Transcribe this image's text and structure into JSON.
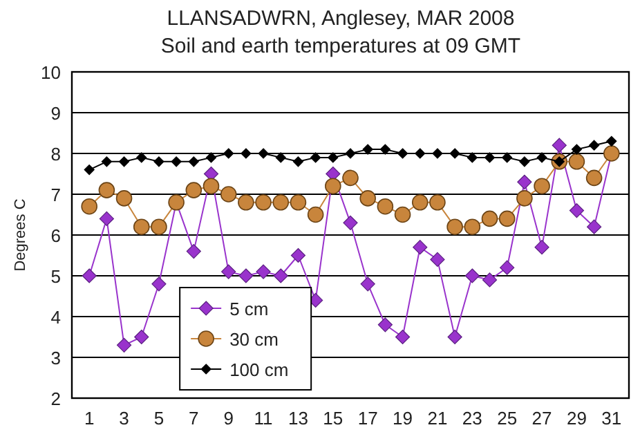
{
  "chart_data": {
    "type": "line",
    "title": "LLANSADWRN, Anglesey, MAR 2008",
    "subtitle": "Soil and earth temperatures at 09 GMT",
    "ylabel": "Degrees C",
    "x": [
      1,
      2,
      3,
      4,
      5,
      6,
      7,
      8,
      9,
      10,
      11,
      12,
      13,
      14,
      15,
      16,
      17,
      18,
      19,
      20,
      21,
      22,
      23,
      24,
      25,
      26,
      27,
      28,
      29,
      30,
      31
    ],
    "xlim": [
      0,
      32
    ],
    "xticks": [
      1,
      3,
      5,
      7,
      9,
      11,
      13,
      15,
      17,
      19,
      21,
      23,
      25,
      27,
      29,
      31
    ],
    "ylim": [
      2,
      10
    ],
    "yticks": [
      2,
      3,
      4,
      5,
      6,
      7,
      8,
      9,
      10
    ],
    "grid": "y",
    "legend": "bottom left",
    "series": [
      {
        "name": "5 cm",
        "color": "#9933cc",
        "marker": "diamond",
        "values": [
          5.0,
          6.4,
          3.3,
          3.5,
          4.8,
          6.8,
          5.6,
          7.5,
          5.1,
          5.0,
          5.1,
          5.0,
          5.5,
          4.4,
          7.5,
          6.3,
          4.8,
          3.8,
          3.5,
          5.7,
          5.4,
          3.5,
          5.0,
          4.9,
          5.2,
          7.3,
          5.7,
          8.2,
          6.6,
          6.2,
          8.0
        ]
      },
      {
        "name": "30 cm",
        "color": "#c8853c",
        "marker": "circle",
        "values": [
          6.7,
          7.1,
          6.9,
          6.2,
          6.2,
          6.8,
          7.1,
          7.2,
          7.0,
          6.8,
          6.8,
          6.8,
          6.8,
          6.5,
          7.2,
          7.4,
          6.9,
          6.7,
          6.5,
          6.8,
          6.8,
          6.2,
          6.2,
          6.4,
          6.4,
          6.9,
          7.2,
          7.8,
          7.8,
          7.4,
          8.0
        ]
      },
      {
        "name": "100 cm",
        "color": "#000000",
        "marker": "diamond",
        "values": [
          7.6,
          7.8,
          7.8,
          7.9,
          7.8,
          7.8,
          7.8,
          7.9,
          8.0,
          8.0,
          8.0,
          7.9,
          7.8,
          7.9,
          7.9,
          8.0,
          8.1,
          8.1,
          8.0,
          8.0,
          8.0,
          8.0,
          7.9,
          7.9,
          7.9,
          7.8,
          7.9,
          7.8,
          8.1,
          8.2,
          8.3
        ]
      }
    ]
  }
}
